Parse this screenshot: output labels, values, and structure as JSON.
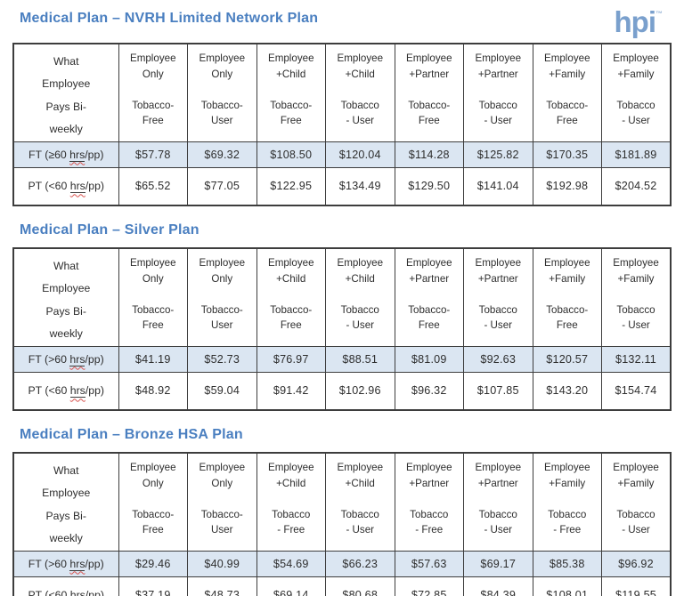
{
  "logo": {
    "text": "hpi",
    "tm": "™"
  },
  "colors": {
    "title_blue": "#4a7fc0",
    "logo_blue": "#7aa0cd",
    "ft_row_bg": "#dbe6f2",
    "border": "#3d3d3d",
    "squiggle_red": "#d9534f"
  },
  "tables": [
    {
      "title": "Medical Plan – NVRH Limited Network Plan",
      "corner": "What\nEmployee\nPays Bi-\nweekly",
      "headers": [
        "Employee\nOnly\n\nTobacco-\nFree",
        "Employee\nOnly\n\nTobacco-\nUser",
        "Employee\n+Child\n\nTobacco-\nFree",
        "Employee\n+Child\n\nTobacco\n- User",
        "Employee\n+Partner\n\nTobacco-\nFree",
        "Employee\n+Partner\n\nTobacco\n- User",
        "Employee\n+Family\n\nTobacco-\nFree",
        "Employee\n+Family\n\nTobacco\n- User"
      ],
      "rows": [
        {
          "label_pre": "FT (≥60 ",
          "label_hrs": "hrs",
          "label_post": "/pp)",
          "values": [
            "$57.78",
            "$69.32",
            "$108.50",
            "$120.04",
            "$114.28",
            "$125.82",
            "$170.35",
            "$181.89"
          ]
        },
        {
          "label_pre": "PT (<60 ",
          "label_hrs": "hrs",
          "label_post": "/pp)",
          "values": [
            "$65.52",
            "$77.05",
            "$122.95",
            "$134.49",
            "$129.50",
            "$141.04",
            "$192.98",
            "$204.52"
          ]
        }
      ]
    },
    {
      "title": "Medical Plan – Silver Plan",
      "corner": "What\nEmployee\nPays Bi-\nweekly",
      "headers": [
        "Employee\nOnly\n\nTobacco-\nFree",
        "Employee\nOnly\n\nTobacco-\nUser",
        "Employee\n+Child\n\nTobacco-\nFree",
        "Employee\n+Child\n\nTobacco\n- User",
        "Employee\n+Partner\n\nTobacco-\nFree",
        "Employee\n+Partner\n\nTobacco\n- User",
        "Employee\n+Family\n\nTobacco-\nFree",
        "Employee\n+Family\n\nTobacco\n- User"
      ],
      "rows": [
        {
          "label_pre": "FT (>60 ",
          "label_hrs": "hrs",
          "label_post": "/pp)",
          "values": [
            "$41.19",
            "$52.73",
            "$76.97",
            "$88.51",
            "$81.09",
            "$92.63",
            "$120.57",
            "$132.11"
          ]
        },
        {
          "label_pre": "PT (<60 ",
          "label_hrs": "hrs",
          "label_post": "/pp)",
          "values": [
            "$48.92",
            "$59.04",
            "$91.42",
            "$102.96",
            "$96.32",
            "$107.85",
            "$143.20",
            "$154.74"
          ]
        }
      ]
    },
    {
      "title": "Medical Plan – Bronze HSA Plan",
      "corner": "What\nEmployee\nPays Bi-\nweekly",
      "headers": [
        "Employee\nOnly\n\nTobacco-\nFree",
        "Employee\nOnly\n\nTobacco-\nUser",
        "Employee\n+Child\n\nTobacco\n- Free",
        "Employee\n+Child\n\nTobacco\n- User",
        "Employee\n+Partner\n\nTobacco\n- Free",
        "Employee\n+Partner\n\nTobacco\n- User",
        "Employee\n+Family\n\nTobacco\n- Free",
        "Employee\n+Family\n\nTobacco\n- User"
      ],
      "rows": [
        {
          "label_pre": "FT (>60 ",
          "label_hrs": "hrs",
          "label_post": "/pp)",
          "values": [
            "$29.46",
            "$40.99",
            "$54.69",
            "$66.23",
            "$57.63",
            "$69.17",
            "$85.38",
            "$96.92"
          ]
        },
        {
          "label_pre": "PT (<60 ",
          "label_hrs": "hrs",
          "label_post": "/pp)",
          "values": [
            "$37.19",
            "$48.73",
            "$69.14",
            "$80.68",
            "$72.85",
            "$84.39",
            "$108.01",
            "$119.55"
          ]
        }
      ]
    }
  ]
}
